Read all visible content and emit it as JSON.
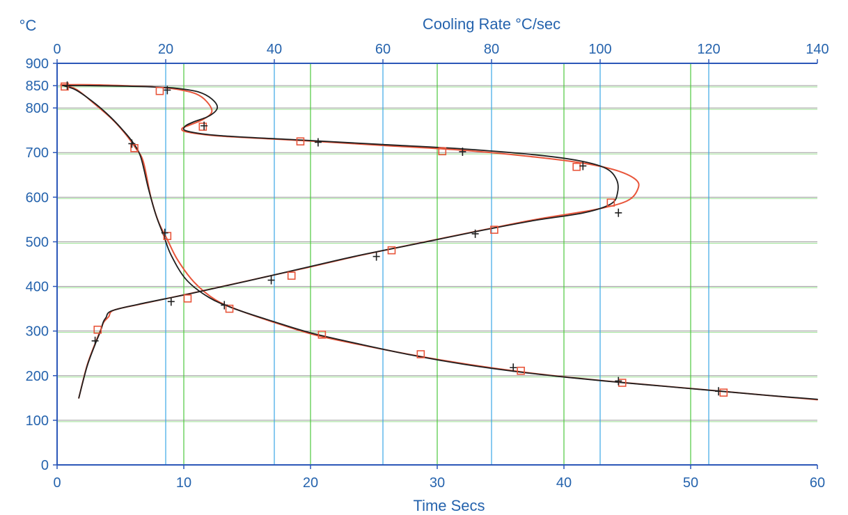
{
  "chart_data": {
    "type": "line",
    "title": "",
    "ylabel": "°C",
    "xlabel": "Time  Secs",
    "x2label": "Cooling Rate  °C/sec",
    "ylim": [
      0,
      900
    ],
    "xlim": [
      0,
      60
    ],
    "x2lim": [
      0,
      140
    ],
    "y_ticks": [
      "0",
      "100",
      "200",
      "300",
      "400",
      "500",
      "600",
      "700",
      "800",
      "850",
      "900"
    ],
    "x_ticks": [
      "0",
      "10",
      "20",
      "30",
      "40",
      "50",
      "60"
    ],
    "x2_ticks": [
      "0",
      "20",
      "40",
      "60",
      "80",
      "100",
      "120",
      "140"
    ],
    "grid": true,
    "legend": "none",
    "colors": {
      "axis_text": "#2563ad",
      "axis_line": "#2b57b8",
      "grid_time": "#4cc83c",
      "grid_rate": "#3aa6e6",
      "grid_temp": "#9a9a9a",
      "curve_black": "#1f1f1f",
      "curve_red": "#e8553a"
    },
    "series": [
      {
        "axis": "time",
        "style": "black",
        "x": [
          0.5,
          1.5,
          3.0,
          4.2,
          5.2,
          6.0,
          6.6,
          7.2,
          7.8,
          8.4,
          9.0,
          10.2,
          12.0,
          14.0,
          17.0,
          20.0,
          24.0,
          28.0,
          32.0,
          36.0,
          40.0,
          44.0,
          48.0,
          52.0,
          56.0,
          60.0
        ],
        "y": [
          850,
          840,
          810,
          780,
          750,
          722,
          690,
          620,
          560,
          515,
          470,
          415,
          375,
          350,
          322,
          296,
          270,
          246,
          226,
          210,
          197,
          186,
          176,
          166,
          156,
          147
        ]
      },
      {
        "axis": "time",
        "style": "red",
        "x": [
          0.3,
          1.5,
          3.0,
          4.3,
          5.3,
          6.2,
          6.8,
          7.4,
          8.0,
          8.7,
          9.5,
          10.8,
          12.5,
          14.5,
          17.5,
          20.5,
          24.5,
          28.5,
          32.5,
          36.5,
          40.5,
          44.5,
          48.5,
          52.5,
          56.0,
          60.0
        ],
        "y": [
          852,
          842,
          808,
          776,
          745,
          710,
          680,
          600,
          545,
          505,
          460,
          410,
          370,
          345,
          316,
          290,
          266,
          244,
          225,
          209,
          196,
          185,
          175,
          165,
          156,
          146
        ]
      },
      {
        "axis": "rate",
        "style": "black",
        "x": [
          1.0,
          6.0,
          12.0,
          18.0,
          22.0,
          26.0,
          28.5,
          29.5,
          28.0,
          25.0,
          23.5,
          24.0,
          30.0,
          45.0,
          60.0,
          75.0,
          88.0,
          96.0,
          101.0,
          103.0,
          103.2,
          102.0,
          97.0,
          88.0,
          78.0,
          66.0,
          55.0,
          45.0,
          35.0,
          25.0,
          15.0,
          10.0,
          9.0,
          8.5,
          8.0,
          7.0,
          5.5,
          4.0
        ],
        "y": [
          850,
          850,
          849,
          847,
          844,
          836,
          820,
          800,
          782,
          768,
          758,
          748,
          738,
          728,
          718,
          708,
          695,
          682,
          665,
          640,
          610,
          585,
          565,
          548,
          525,
          495,
          468,
          440,
          412,
          385,
          360,
          345,
          330,
          320,
          300,
          270,
          220,
          150
        ]
      },
      {
        "axis": "rate",
        "style": "red",
        "x": [
          1.0,
          6.0,
          12.0,
          18.0,
          22.0,
          25.5,
          27.5,
          28.5,
          27.0,
          24.5,
          23.0,
          24.0,
          30.0,
          45.0,
          60.0,
          75.0,
          88.0,
          97.0,
          103.0,
          106.5,
          107.0,
          105.0,
          99.0,
          89.0,
          79.0,
          67.0,
          56.0,
          46.0,
          36.0,
          26.0,
          16.0,
          10.5,
          9.5,
          8.6,
          8.0,
          7.0,
          5.5,
          4.0
        ],
        "y": [
          852,
          852,
          850,
          847,
          842,
          832,
          815,
          792,
          775,
          762,
          754,
          746,
          737,
          727,
          716,
          705,
          690,
          676,
          660,
          640,
          620,
          592,
          572,
          552,
          528,
          498,
          470,
          442,
          415,
          388,
          362,
          347,
          332,
          320,
          302,
          272,
          222,
          150
        ]
      }
    ],
    "markers": {
      "black_plus": [
        [
          0.8,
          850
        ],
        [
          8.7,
          840
        ],
        [
          5.9,
          720
        ],
        [
          8.5,
          520
        ],
        [
          11.6,
          760
        ],
        [
          20.6,
          723
        ],
        [
          32.0,
          702
        ],
        [
          41.5,
          670
        ],
        [
          44.3,
          565
        ],
        [
          33.0,
          518
        ],
        [
          25.2,
          467
        ],
        [
          16.9,
          414
        ],
        [
          9.0,
          366
        ],
        [
          13.2,
          358
        ],
        [
          3.0,
          278
        ],
        [
          36.0,
          218
        ],
        [
          44.3,
          188
        ],
        [
          52.2,
          165
        ]
      ],
      "red_square": [
        [
          0.6,
          848
        ],
        [
          8.1,
          838
        ],
        [
          6.1,
          710
        ],
        [
          8.7,
          513
        ],
        [
          11.5,
          758
        ],
        [
          19.2,
          725
        ],
        [
          30.4,
          703
        ],
        [
          41.0,
          668
        ],
        [
          43.7,
          588
        ],
        [
          34.5,
          527
        ],
        [
          26.4,
          481
        ],
        [
          18.5,
          424
        ],
        [
          10.3,
          373
        ],
        [
          13.6,
          350
        ],
        [
          3.2,
          303
        ],
        [
          20.9,
          292
        ],
        [
          28.7,
          248
        ],
        [
          36.6,
          211
        ],
        [
          44.6,
          184
        ],
        [
          52.6,
          162
        ]
      ]
    }
  }
}
